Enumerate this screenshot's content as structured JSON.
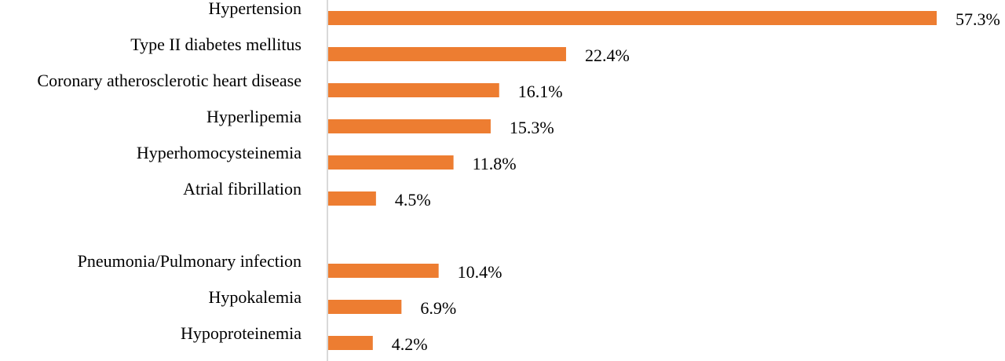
{
  "chart_data": {
    "type": "bar",
    "orientation": "horizontal",
    "categories": [
      "Hypertension",
      "Type II diabetes mellitus",
      "Coronary atherosclerotic heart disease",
      "Hyperlipemia",
      "Hyperhomocysteinemia",
      "Atrial fibrillation",
      "",
      "Pneumonia/Pulmonary infection",
      "Hypokalemia",
      "Hypoproteinemia"
    ],
    "values": [
      57.3,
      22.4,
      16.1,
      15.3,
      11.8,
      4.5,
      null,
      10.4,
      6.9,
      4.2
    ],
    "value_labels": [
      "57.3%",
      "22.4%",
      "16.1%",
      "15.3%",
      "11.8%",
      "4.5%",
      "",
      "10.4%",
      "6.9%",
      "4.2%"
    ],
    "title": "",
    "xlabel": "",
    "ylabel": "",
    "xlim": [
      0,
      60
    ],
    "grid": false,
    "legend": "none",
    "bar_color": "#ED7D31",
    "axis_color": "#D9D9D9"
  }
}
